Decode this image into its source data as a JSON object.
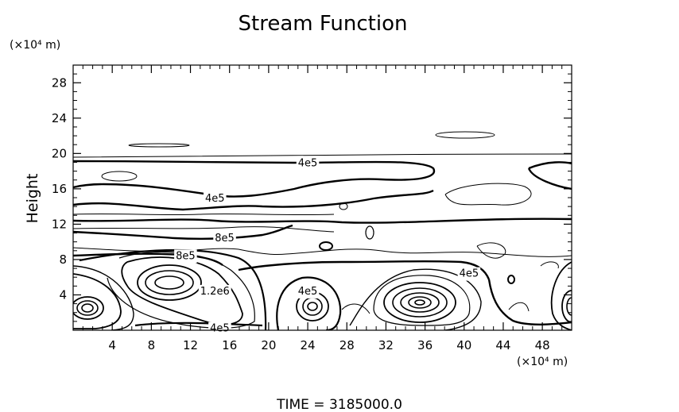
{
  "chart_data": {
    "type": "contour",
    "title": "Stream Function",
    "xlabel": "",
    "ylabel": "Height",
    "x_unit": "(×10⁴ m)",
    "y_unit": "(×10⁴ m)",
    "xlim": [
      0,
      51
    ],
    "ylim": [
      0,
      30
    ],
    "x_ticks": [
      "4",
      "8",
      "12",
      "16",
      "20",
      "24",
      "28",
      "32",
      "36",
      "40",
      "44",
      "48"
    ],
    "y_ticks": [
      "4",
      "8",
      "12",
      "16",
      "20",
      "24",
      "28"
    ],
    "x_tick_values": [
      4,
      8,
      12,
      16,
      20,
      24,
      28,
      32,
      36,
      40,
      44,
      48
    ],
    "y_tick_values": [
      4,
      8,
      12,
      16,
      20,
      24,
      28
    ],
    "contour_labels": [
      {
        "text": "4e5",
        "x": 24,
        "y": 19
      },
      {
        "text": "4e5",
        "x": 14.5,
        "y": 15
      },
      {
        "text": "8e5",
        "x": 15.5,
        "y": 10.5
      },
      {
        "text": "8e5",
        "x": 11.5,
        "y": 8.5
      },
      {
        "text": "1.2e6",
        "x": 14.5,
        "y": 4.5
      },
      {
        "text": "4e5",
        "x": 24,
        "y": 4.5
      },
      {
        "text": "4e5",
        "x": 40.5,
        "y": 6.5
      },
      {
        "text": "4e5",
        "x": 15,
        "y": 0.3
      }
    ],
    "contour_centers": [
      {
        "x": 1.5,
        "y": 2.8
      },
      {
        "x": 10,
        "y": 5.5
      },
      {
        "x": 24.5,
        "y": 2.8
      },
      {
        "x": 35.5,
        "y": 3.2
      },
      {
        "x": 51,
        "y": 3
      }
    ]
  },
  "footer": {
    "time_text": "TIME  =  3185000.0"
  }
}
